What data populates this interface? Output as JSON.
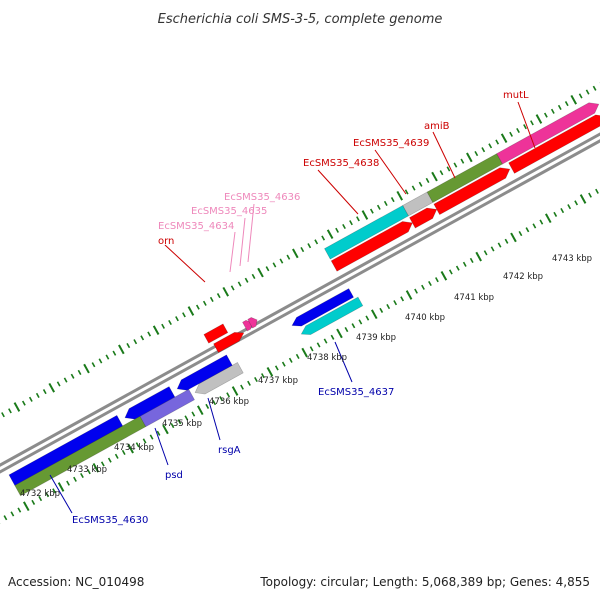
{
  "title": "Escherichia coli SMS-3-5, complete genome",
  "footer": {
    "accession": "Accession: NC_010498",
    "summary": "Topology: circular; Length: 5,068,389 bp; Genes: 4,855"
  },
  "colors": {
    "backbone": "#8c8c8c",
    "tick": "#1a7a1a",
    "label_forward": "#cc0000",
    "label_reverse": "#0000aa",
    "label_small": "#ee88bb",
    "red": "#ff0000",
    "blue": "#0000ee",
    "cyan": "#00cccc",
    "olive": "#669933",
    "gray": "#c0c0c0",
    "pink": "#ee3399",
    "violet": "#7766dd"
  },
  "kbp_ticks": [
    {
      "kbp": 4732,
      "label": "4732 kbp"
    },
    {
      "kbp": 4733,
      "label": "4733 kbp"
    },
    {
      "kbp": 4734,
      "label": "4734 kbp"
    },
    {
      "kbp": 4735,
      "label": "4735 kbp"
    },
    {
      "kbp": 4736,
      "label": "4736 kbp"
    },
    {
      "kbp": 4737,
      "label": "4737 kbp"
    },
    {
      "kbp": 4738,
      "label": "4738 kbp"
    },
    {
      "kbp": 4739,
      "label": "4739 kbp"
    },
    {
      "kbp": 4740,
      "label": "4740 kbp"
    },
    {
      "kbp": 4741,
      "label": "4741 kbp"
    },
    {
      "kbp": 4742,
      "label": "4742 kbp"
    },
    {
      "kbp": 4743,
      "label": "4743 kbp"
    }
  ],
  "genes": [
    {
      "name": "EcSMS35_4630",
      "strand": "reverse",
      "label_color": "label_reverse"
    },
    {
      "name": "psd",
      "strand": "reverse",
      "label_color": "label_reverse"
    },
    {
      "name": "rsgA",
      "strand": "reverse",
      "label_color": "label_reverse"
    },
    {
      "name": "EcSMS35_4637",
      "strand": "reverse",
      "label_color": "label_reverse"
    },
    {
      "name": "orn",
      "strand": "forward",
      "label_color": "label_forward"
    },
    {
      "name": "EcSMS35_4634",
      "strand": "forward",
      "label_color": "label_small"
    },
    {
      "name": "EcSMS35_4635",
      "strand": "forward",
      "label_color": "label_small"
    },
    {
      "name": "EcSMS35_4636",
      "strand": "forward",
      "label_color": "label_small"
    },
    {
      "name": "EcSMS35_4638",
      "strand": "forward",
      "label_color": "label_forward"
    },
    {
      "name": "EcSMS35_4639",
      "strand": "forward",
      "label_color": "label_forward"
    },
    {
      "name": "amiB",
      "strand": "forward",
      "label_color": "label_forward"
    },
    {
      "name": "mutL",
      "strand": "forward",
      "label_color": "label_forward"
    }
  ]
}
